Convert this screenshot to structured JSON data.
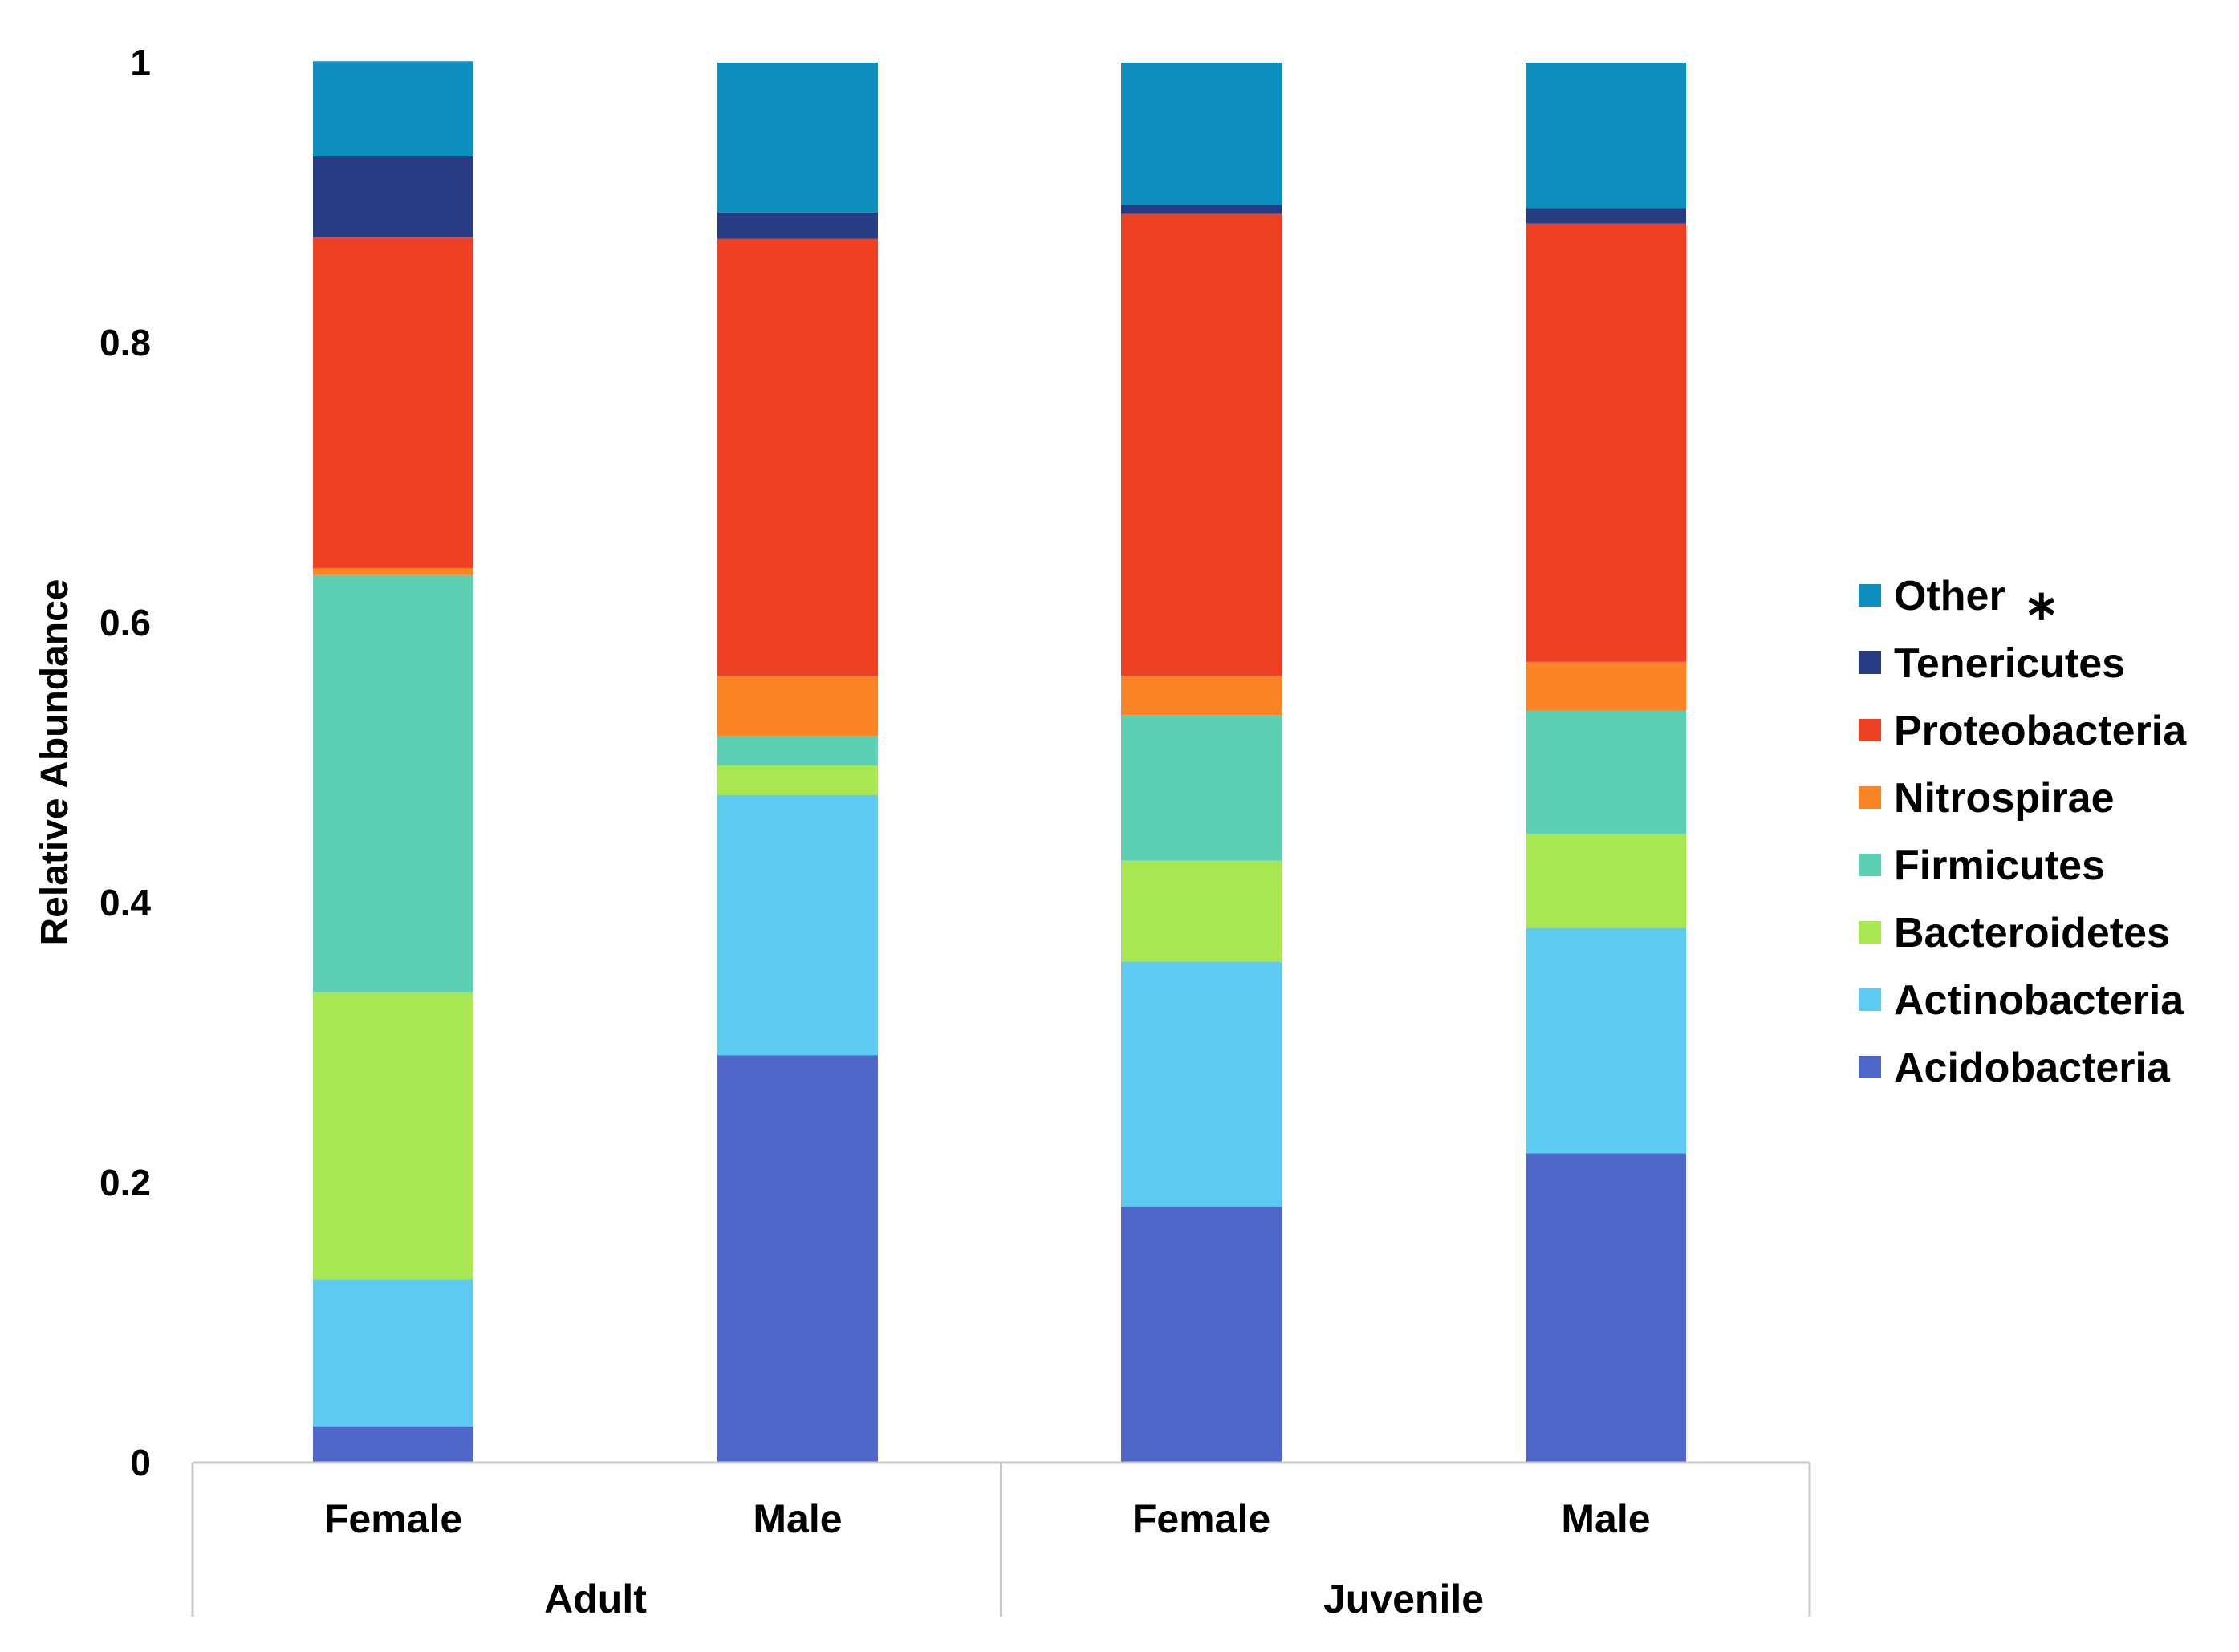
{
  "chart_data": {
    "type": "bar",
    "stacked": true,
    "title": "",
    "xlabel": "",
    "ylabel": "Relative Abundance",
    "ylim": [
      0,
      1
    ],
    "yticks": [
      "0",
      "0.2",
      "0.4",
      "0.6",
      "0.8",
      "1"
    ],
    "categories": [
      "Female",
      "Male",
      "Female",
      "Male"
    ],
    "groups": [
      {
        "name": "Adult",
        "categories": [
          0,
          1
        ]
      },
      {
        "name": "Juvenile",
        "categories": [
          2,
          3
        ]
      }
    ],
    "legend_position": "right",
    "series": [
      {
        "name": "Acidobacteria",
        "color": "#4F67C9",
        "values": [
          0.026,
          0.291,
          0.183,
          0.221
        ]
      },
      {
        "name": "Actinobacteria",
        "color": "#5DCBF1",
        "values": [
          0.105,
          0.186,
          0.175,
          0.161
        ]
      },
      {
        "name": "Bacteroidetes",
        "color": "#A8E751",
        "values": [
          0.205,
          0.021,
          0.072,
          0.067
        ]
      },
      {
        "name": "Firmicutes",
        "color": "#5DD0B4",
        "values": [
          0.298,
          0.021,
          0.104,
          0.088
        ]
      },
      {
        "name": "Nitrospirae",
        "color": "#FB8427",
        "values": [
          0.005,
          0.043,
          0.028,
          0.035
        ]
      },
      {
        "name": "Proteobacteria",
        "color": "#EE4124",
        "values": [
          0.236,
          0.312,
          0.33,
          0.313
        ]
      },
      {
        "name": "Tenericutes",
        "color": "#283C84",
        "values": [
          0.058,
          0.019,
          0.006,
          0.011
        ]
      },
      {
        "name": "Other",
        "color": "#0F8FBD",
        "values": [
          0.068,
          0.107,
          0.102,
          0.104
        ]
      }
    ],
    "legend_marker_text": "∗"
  }
}
